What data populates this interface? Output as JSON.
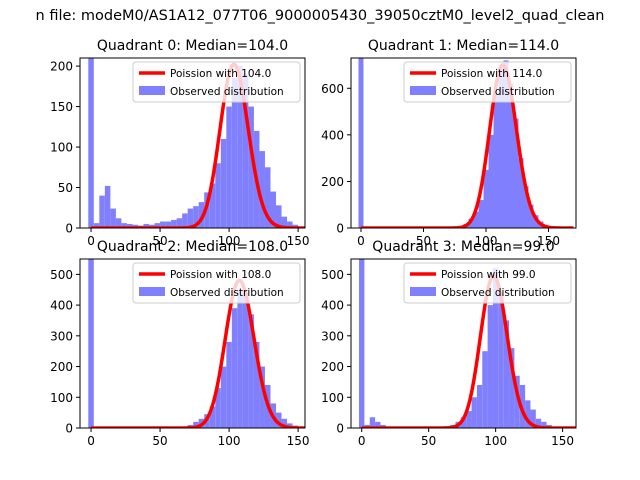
{
  "suptitle": "n file: modeM0/AS1A12_077T06_9000005430_39050cztM0_level2_quad_clean",
  "colors": {
    "poisson": "#ff0000",
    "observed": "#8080ff",
    "axis": "#000000",
    "background": "#ffffff"
  },
  "chart_data": [
    {
      "type": "bar",
      "title": "Quadrant 0: Median=104.0",
      "legend_position": "top-right",
      "xlim": [
        -8,
        155
      ],
      "ylim": [
        0,
        210
      ],
      "xticks": [
        0,
        50,
        100,
        150
      ],
      "yticks": [
        0,
        50,
        100,
        150,
        200
      ],
      "series": [
        {
          "name": "Observed distribution",
          "kind": "histogram",
          "bin_width": 4,
          "bins": [
            [
              -2,
              520
            ],
            [
              2,
              6
            ],
            [
              6,
              40
            ],
            [
              10,
              52
            ],
            [
              14,
              24
            ],
            [
              18,
              12
            ],
            [
              22,
              6
            ],
            [
              26,
              5
            ],
            [
              30,
              4
            ],
            [
              34,
              3
            ],
            [
              38,
              5
            ],
            [
              42,
              4
            ],
            [
              46,
              6
            ],
            [
              50,
              8
            ],
            [
              54,
              8
            ],
            [
              58,
              10
            ],
            [
              62,
              12
            ],
            [
              66,
              18
            ],
            [
              70,
              24
            ],
            [
              74,
              27
            ],
            [
              78,
              32
            ],
            [
              82,
              44
            ],
            [
              86,
              55
            ],
            [
              90,
              80
            ],
            [
              94,
              110
            ],
            [
              98,
              150
            ],
            [
              102,
              185
            ],
            [
              106,
              200
            ],
            [
              110,
              190
            ],
            [
              114,
              150
            ],
            [
              118,
              120
            ],
            [
              122,
              95
            ],
            [
              126,
              75
            ],
            [
              130,
              45
            ],
            [
              134,
              28
            ],
            [
              138,
              14
            ],
            [
              142,
              8
            ],
            [
              146,
              4
            ]
          ]
        },
        {
          "name": "Poission with 104.0",
          "kind": "poisson",
          "lambda": 104.0,
          "peak": 202
        }
      ]
    },
    {
      "type": "bar",
      "title": "Quadrant 1: Median=114.0",
      "legend_position": "top-right",
      "xlim": [
        -8,
        172
      ],
      "ylim": [
        0,
        730
      ],
      "xticks": [
        0,
        50,
        100,
        150
      ],
      "yticks": [
        0,
        200,
        400,
        600
      ],
      "series": [
        {
          "name": "Observed distribution",
          "kind": "histogram",
          "bin_width": 4,
          "bins": [
            [
              -2,
              1100
            ],
            [
              70,
              2
            ],
            [
              74,
              4
            ],
            [
              78,
              8
            ],
            [
              82,
              18
            ],
            [
              86,
              40
            ],
            [
              90,
              70
            ],
            [
              94,
              120
            ],
            [
              98,
              250
            ],
            [
              102,
              400
            ],
            [
              106,
              580
            ],
            [
              110,
              690
            ],
            [
              114,
              720
            ],
            [
              118,
              620
            ],
            [
              122,
              470
            ],
            [
              126,
              300
            ],
            [
              130,
              180
            ],
            [
              134,
              100
            ],
            [
              138,
              55
            ],
            [
              142,
              28
            ],
            [
              146,
              12
            ],
            [
              150,
              6
            ],
            [
              154,
              3
            ]
          ]
        },
        {
          "name": "Poission with 114.0",
          "kind": "poisson",
          "lambda": 114.0,
          "peak": 700
        }
      ]
    },
    {
      "type": "bar",
      "title": "Quadrant 2: Median=108.0",
      "legend_position": "top-right",
      "xlim": [
        -8,
        155
      ],
      "ylim": [
        0,
        550
      ],
      "xticks": [
        0,
        50,
        100,
        150
      ],
      "yticks": [
        0,
        100,
        200,
        300,
        400,
        500
      ],
      "series": [
        {
          "name": "Observed distribution",
          "kind": "histogram",
          "bin_width": 4,
          "bins": [
            [
              -2,
              800
            ],
            [
              66,
              5
            ],
            [
              70,
              10
            ],
            [
              74,
              20
            ],
            [
              78,
              30
            ],
            [
              82,
              45
            ],
            [
              86,
              70
            ],
            [
              90,
              130
            ],
            [
              94,
              200
            ],
            [
              98,
              280
            ],
            [
              102,
              390
            ],
            [
              106,
              450
            ],
            [
              110,
              440
            ],
            [
              114,
              370
            ],
            [
              118,
              280
            ],
            [
              122,
              200
            ],
            [
              126,
              140
            ],
            [
              130,
              80
            ],
            [
              134,
              50
            ],
            [
              138,
              30
            ],
            [
              142,
              15
            ],
            [
              146,
              8
            ]
          ]
        },
        {
          "name": "Poission with 108.0",
          "kind": "poisson",
          "lambda": 108.0,
          "peak": 480
        }
      ]
    },
    {
      "type": "bar",
      "title": "Quadrant 3: Median=99.0",
      "legend_position": "top-right",
      "xlim": [
        -8,
        160
      ],
      "ylim": [
        0,
        550
      ],
      "xticks": [
        0,
        50,
        100,
        150
      ],
      "yticks": [
        0,
        100,
        200,
        300,
        400,
        500
      ],
      "series": [
        {
          "name": "Observed distribution",
          "kind": "histogram",
          "bin_width": 4,
          "bins": [
            [
              -2,
              800
            ],
            [
              2,
              10
            ],
            [
              6,
              35
            ],
            [
              10,
              20
            ],
            [
              14,
              10
            ],
            [
              18,
              4
            ],
            [
              22,
              3
            ],
            [
              58,
              3
            ],
            [
              62,
              5
            ],
            [
              66,
              10
            ],
            [
              70,
              20
            ],
            [
              74,
              35
            ],
            [
              78,
              55
            ],
            [
              82,
              100
            ],
            [
              86,
              140
            ],
            [
              90,
              250
            ],
            [
              94,
              400
            ],
            [
              98,
              520
            ],
            [
              102,
              440
            ],
            [
              106,
              350
            ],
            [
              110,
              260
            ],
            [
              114,
              170
            ],
            [
              118,
              140
            ],
            [
              122,
              90
            ],
            [
              126,
              60
            ],
            [
              130,
              30
            ],
            [
              134,
              20
            ],
            [
              138,
              10
            ]
          ]
        },
        {
          "name": "Poission with 99.0",
          "kind": "poisson",
          "lambda": 99.0,
          "peak": 495
        }
      ]
    }
  ]
}
